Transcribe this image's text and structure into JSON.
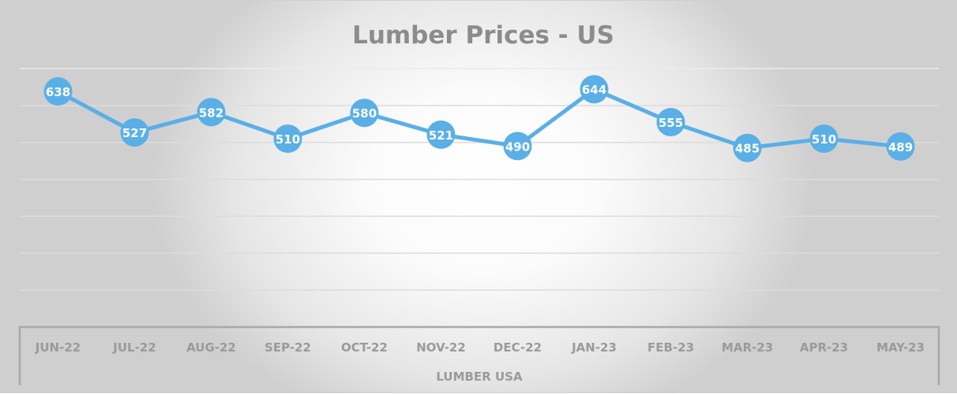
{
  "chart_data": {
    "type": "line",
    "title": "Lumber  Prices - US",
    "xlabel": "LUMBER USA",
    "ylabel": "",
    "categories": [
      "JUN-22",
      "JUL-22",
      "AUG-22",
      "SEP-22",
      "OCT-22",
      "NOV-22",
      "DEC-22",
      "JAN-23",
      "FEB-23",
      "MAR-23",
      "APR-23",
      "MAY-23"
    ],
    "series": [
      {
        "name": "Lumber USA",
        "values": [
          638,
          527,
          582,
          510,
          580,
          521,
          490,
          644,
          555,
          485,
          510,
          489
        ]
      }
    ],
    "ylim": [
      0,
      700
    ],
    "grid": true,
    "legend": "none",
    "colors": {
      "line": "#5aafe6",
      "title": "#8c8c8c",
      "axis_text": "#9a9a9a"
    }
  }
}
